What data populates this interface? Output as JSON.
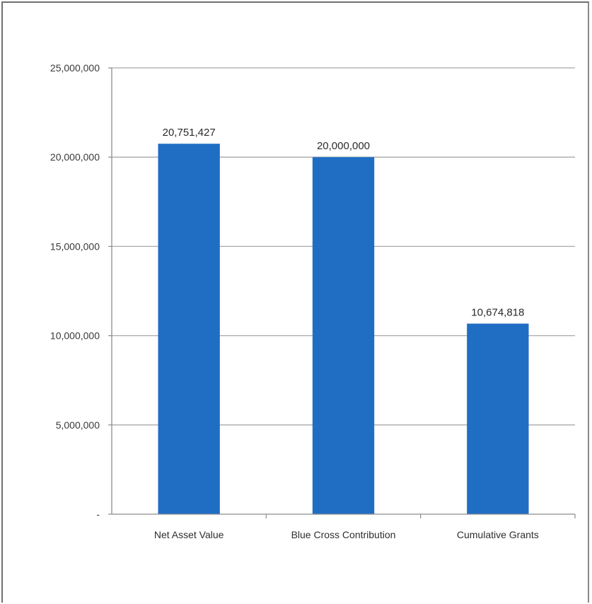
{
  "chart_data": {
    "type": "bar",
    "categories": [
      "Net Asset Value",
      "Blue Cross Contribution",
      "Cumulative Grants"
    ],
    "values": [
      20751427,
      20000000,
      10674818
    ],
    "data_labels": [
      "20,751,427",
      "20,000,000",
      "10,674,818"
    ],
    "ylim": [
      0,
      25000000
    ],
    "yticks": [
      0,
      5000000,
      10000000,
      15000000,
      20000000,
      25000000
    ],
    "ytick_labels": [
      "-",
      "5,000,000",
      "10,000,000",
      "15,000,000",
      "20,000,000",
      "25,000,000"
    ],
    "grid": true,
    "legend": "none",
    "bar_color": "#1f6ec4",
    "grid_color": "#a9a9a9"
  }
}
